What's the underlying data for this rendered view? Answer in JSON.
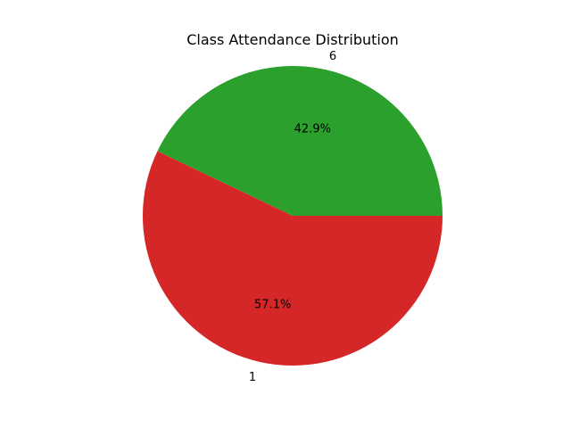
{
  "chart_data": {
    "type": "pie",
    "title": "Class Attendance Distribution",
    "slices": [
      {
        "label": "6",
        "value": 42.9,
        "pct_label": "42.9%",
        "color": "#2ca02c"
      },
      {
        "label": "1",
        "value": 57.1,
        "pct_label": "57.1%",
        "color": "#d62728"
      }
    ],
    "start_angle_deg": 0,
    "direction": "counterclockwise"
  }
}
